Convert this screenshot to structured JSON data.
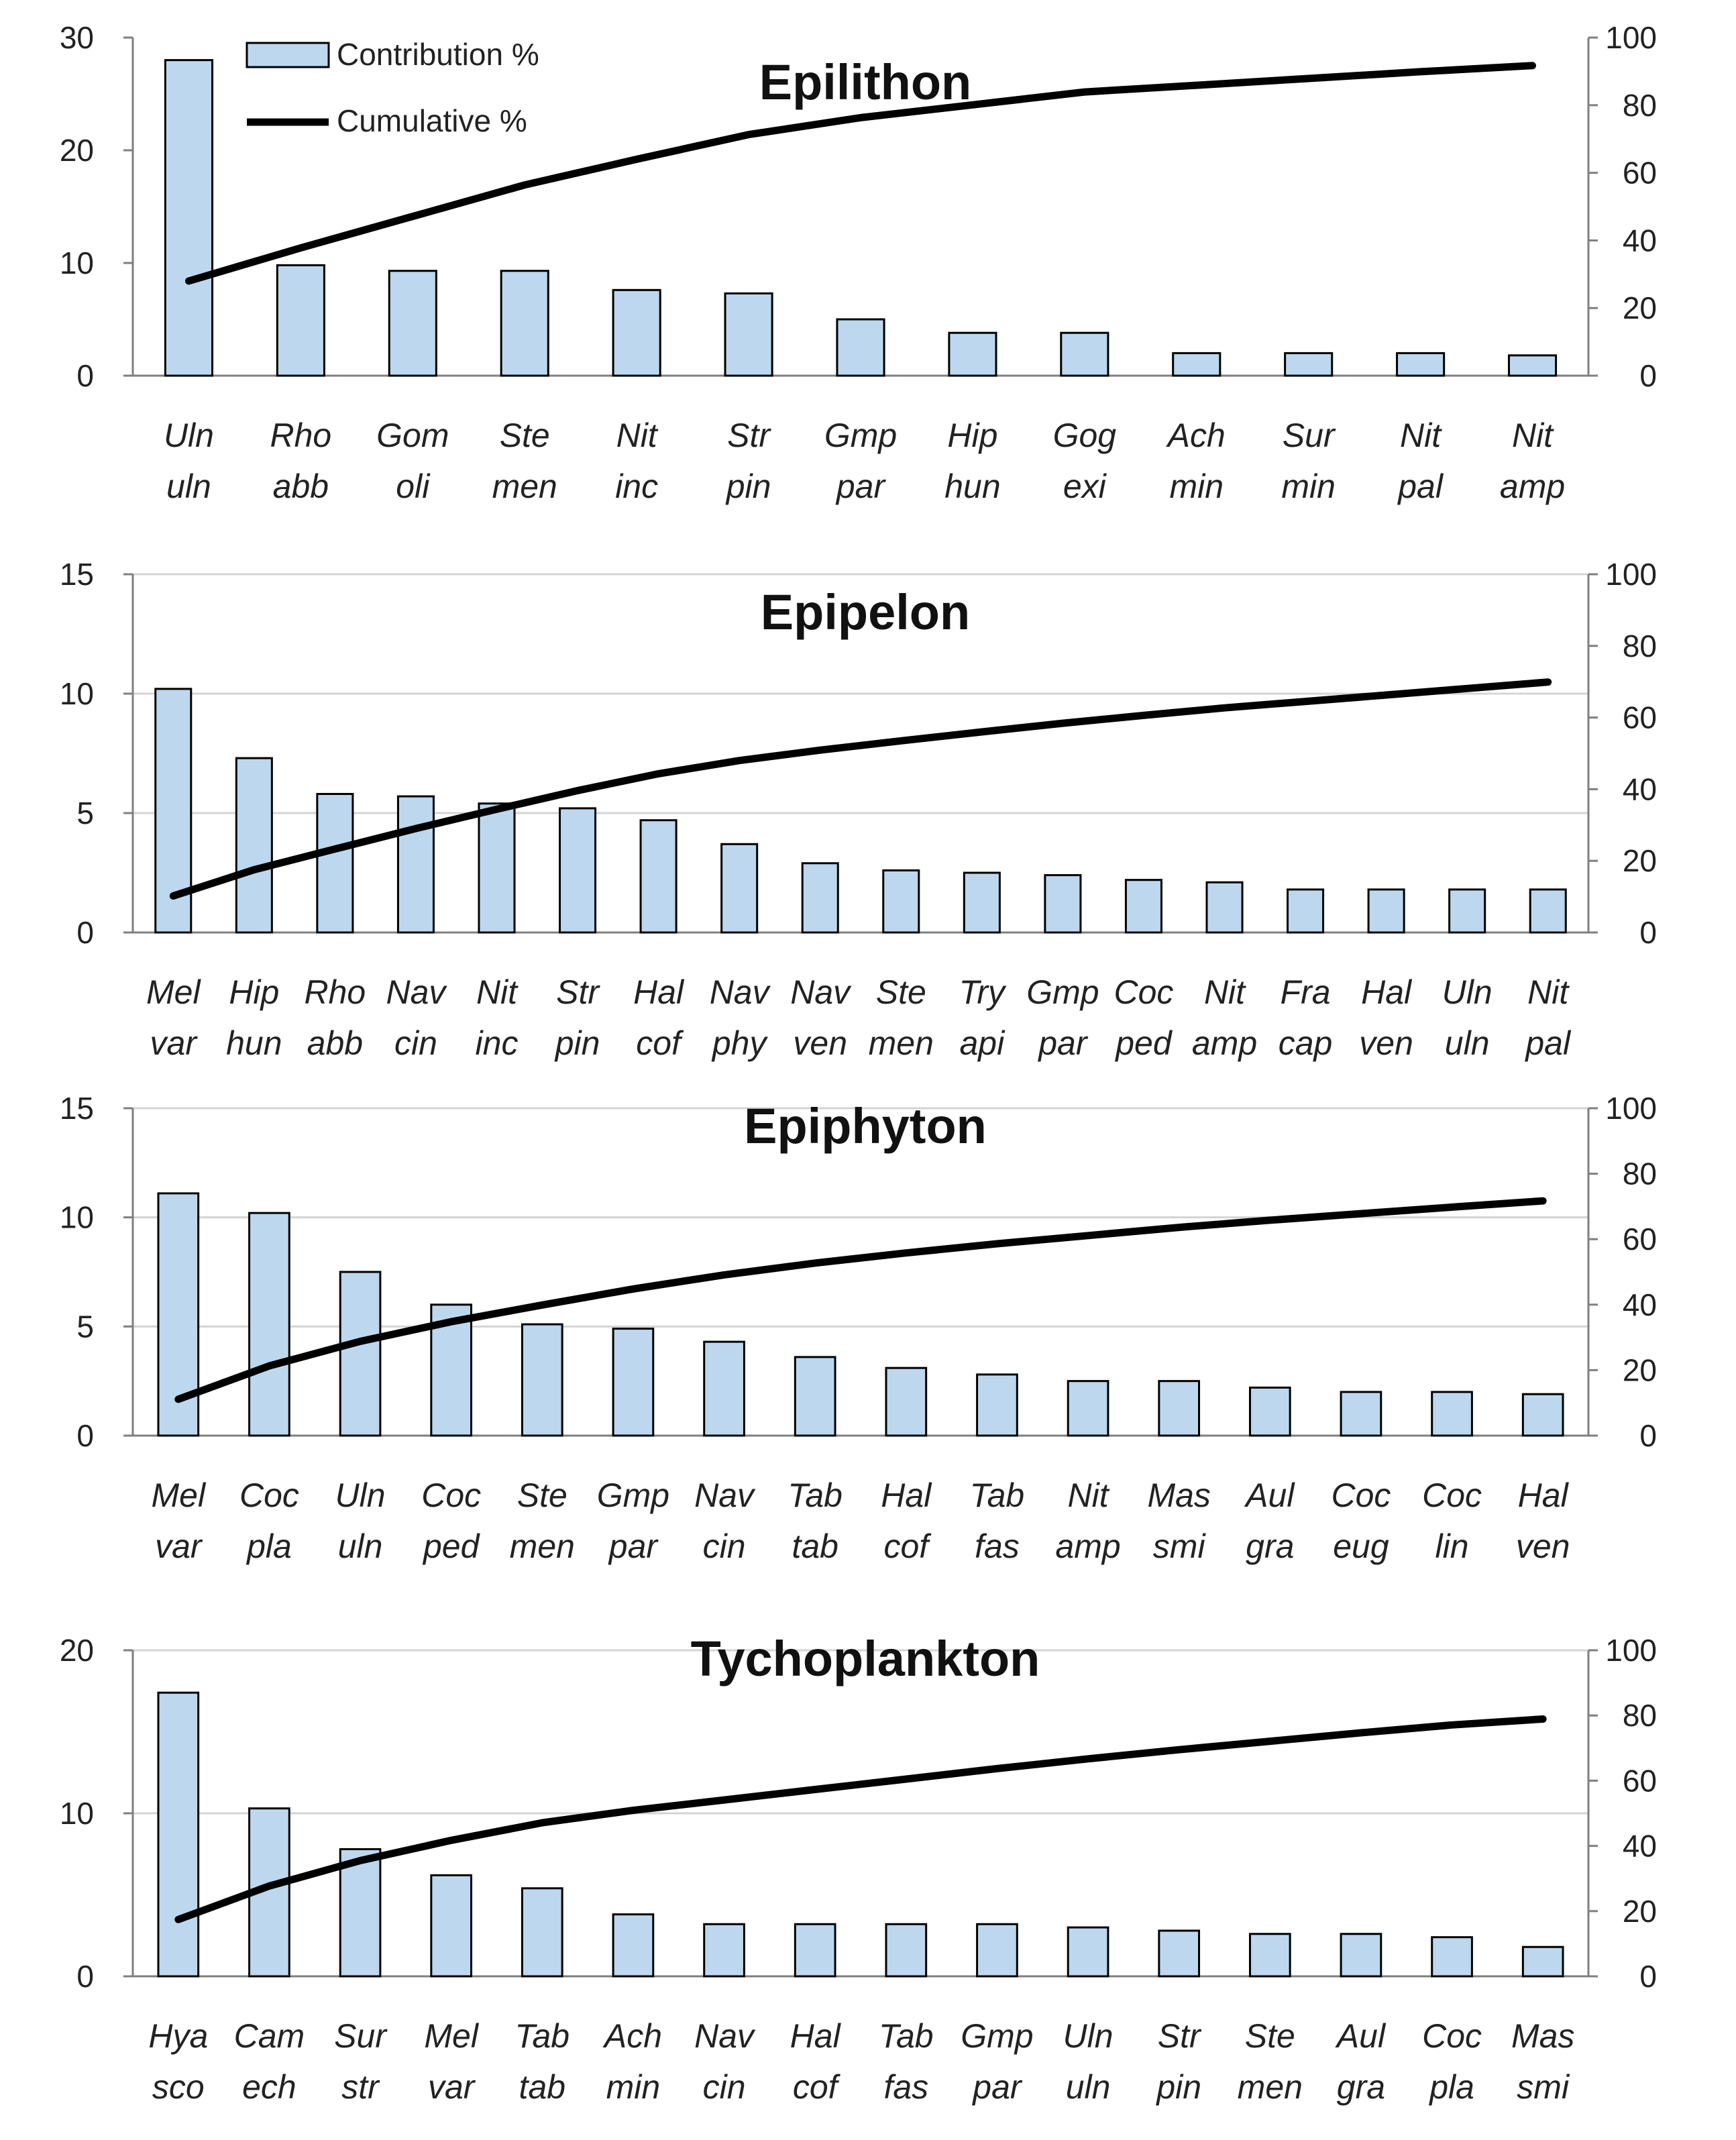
{
  "legend": {
    "bar_label": "Contribution %",
    "line_label": "Cumulative %"
  },
  "colors": {
    "bar_fill": "#bdd7ee",
    "bar_stroke": "#000000",
    "line": "#000000",
    "grid": "#d4d4d4"
  },
  "chart_data": [
    {
      "type": "bar",
      "title": "Epilithon",
      "categories": [
        "Uln uln",
        "Rho abb",
        "Gom oli",
        "Ste men",
        "Nit inc",
        "Str pin",
        "Gmp par",
        "Hip hun",
        "Gog exi",
        "Ach min",
        "Sur min",
        "Nit pal",
        "Nit amp"
      ],
      "series": [
        {
          "name": "Contribution %",
          "axis": "left",
          "values": [
            28,
            9.8,
            9.3,
            9.3,
            7.6,
            7.3,
            5.0,
            3.8,
            3.8,
            2.0,
            2.0,
            2.0,
            1.8
          ]
        },
        {
          "name": "Cumulative %",
          "axis": "right",
          "type": "line",
          "values": [
            28,
            37.8,
            47.1,
            56.4,
            64.0,
            71.3,
            76.3,
            80.1,
            83.9,
            85.9,
            87.9,
            89.9,
            91.7
          ]
        }
      ],
      "ylim": [
        0,
        30
      ],
      "yticks": [
        0,
        10,
        20,
        30
      ],
      "y2lim": [
        0,
        100
      ],
      "y2ticks": [
        0,
        20,
        40,
        60,
        80,
        100
      ],
      "grid": false,
      "legend": "top-left"
    },
    {
      "type": "bar",
      "title": "Epipelon",
      "categories": [
        "Mel var",
        "Hip hun",
        "Rho abb",
        "Nav cin",
        "Nit inc",
        "Str pin",
        "Hal cof",
        "Nav phy",
        "Nav ven",
        "Ste men",
        "Try api",
        "Gmp par",
        "Coc ped",
        "Nit amp",
        "Fra cap",
        "Hal ven",
        "Uln uln",
        "Nit pal"
      ],
      "series": [
        {
          "name": "Contribution %",
          "axis": "left",
          "values": [
            10.2,
            7.3,
            5.8,
            5.7,
            5.4,
            5.2,
            4.7,
            3.7,
            2.9,
            2.6,
            2.5,
            2.4,
            2.2,
            2.1,
            1.8,
            1.8,
            1.8,
            1.8
          ]
        },
        {
          "name": "Cumulative %",
          "axis": "right",
          "type": "line",
          "values": [
            10.2,
            17.5,
            23.3,
            29.0,
            34.4,
            39.6,
            44.3,
            48.0,
            50.9,
            53.5,
            56.0,
            58.4,
            60.6,
            62.7,
            64.5,
            66.3,
            68.1,
            69.9
          ]
        }
      ],
      "ylim": [
        0,
        15
      ],
      "yticks": [
        0,
        5,
        10,
        15
      ],
      "y2lim": [
        0,
        100
      ],
      "y2ticks": [
        0,
        20,
        40,
        60,
        80,
        100
      ],
      "grid": true
    },
    {
      "type": "bar",
      "title": "Epiphyton",
      "categories": [
        "Mel var",
        "Coc pla",
        "Uln uln",
        "Coc ped",
        "Ste men",
        "Gmp par",
        "Nav cin",
        "Tab tab",
        "Hal cof",
        "Tab fas",
        "Nit amp",
        "Mas smi",
        "Aul gra",
        "Coc eug",
        "Coc lin",
        "Hal ven"
      ],
      "series": [
        {
          "name": "Contribution %",
          "axis": "left",
          "values": [
            11.1,
            10.2,
            7.5,
            6.0,
            5.1,
            4.9,
            4.3,
            3.6,
            3.1,
            2.8,
            2.5,
            2.5,
            2.2,
            2.0,
            2.0,
            1.9
          ]
        },
        {
          "name": "Cumulative %",
          "axis": "right",
          "type": "line",
          "values": [
            11.1,
            21.3,
            28.8,
            34.8,
            39.9,
            44.8,
            49.1,
            52.7,
            55.8,
            58.6,
            61.1,
            63.6,
            65.8,
            67.8,
            69.8,
            71.7
          ]
        }
      ],
      "ylim": [
        0,
        15
      ],
      "yticks": [
        0,
        5,
        10,
        15
      ],
      "y2lim": [
        0,
        100
      ],
      "y2ticks": [
        0,
        20,
        40,
        60,
        80,
        100
      ],
      "grid": true
    },
    {
      "type": "bar",
      "title": "Tychoplankton",
      "categories": [
        "Hya sco",
        "Cam ech",
        "Sur str",
        "Mel var",
        "Tab tab",
        "Ach min",
        "Nav cin",
        "Hal cof",
        "Tab fas",
        "Gmp par",
        "Uln uln",
        "Str pin",
        "Ste men",
        "Aul gra",
        "Coc pla",
        "Mas smi"
      ],
      "series": [
        {
          "name": "Contribution %",
          "axis": "left",
          "values": [
            17.4,
            10.3,
            7.8,
            6.2,
            5.4,
            3.8,
            3.2,
            3.2,
            3.2,
            3.2,
            3.0,
            2.8,
            2.6,
            2.6,
            2.4,
            1.8
          ]
        },
        {
          "name": "Cumulative %",
          "axis": "right",
          "type": "line",
          "values": [
            17.4,
            27.7,
            35.5,
            41.7,
            47.1,
            50.9,
            54.1,
            57.3,
            60.5,
            63.7,
            66.7,
            69.5,
            72.1,
            74.7,
            77.1,
            78.9
          ]
        }
      ],
      "ylim": [
        0,
        20
      ],
      "yticks": [
        0,
        10,
        20
      ],
      "y2lim": [
        0,
        100
      ],
      "y2ticks": [
        0,
        20,
        40,
        60,
        80,
        100
      ],
      "grid": true
    }
  ]
}
